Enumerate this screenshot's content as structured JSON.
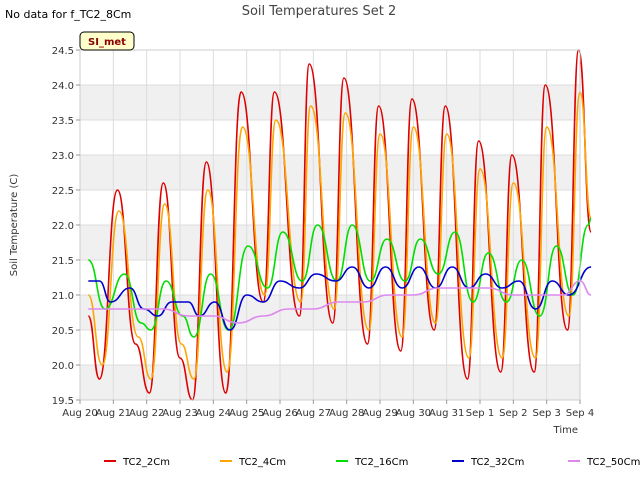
{
  "chart_data": {
    "type": "line",
    "title": "Soil Temperatures Set 2",
    "corner_note": "No data for f_TC2_8Cm",
    "station_label": "SI_met",
    "xlabel": "Time",
    "ylabel": "Soil Temperature (C)",
    "xlim": [
      "2019-08-20",
      "2019-09-04"
    ],
    "ylim": [
      19.5,
      24.5
    ],
    "x_ticks": [
      "Aug 20",
      "Aug 21",
      "Aug 22",
      "Aug 23",
      "Aug 24",
      "Aug 25",
      "Aug 26",
      "Aug 27",
      "Aug 28",
      "Aug 29",
      "Aug 30",
      "Aug 31",
      "Sep 1",
      "Sep 2",
      "Sep 3",
      "Sep 4"
    ],
    "y_ticks": [
      19.5,
      20.0,
      20.5,
      21.0,
      21.5,
      22.0,
      22.5,
      23.0,
      23.5,
      24.0,
      24.5
    ],
    "grid": true,
    "legend_position": "bottom",
    "series": [
      {
        "name": "TC2_2Cm",
        "color": "#dd0000",
        "points": [
          [
            "2019-08-20T06:00",
            20.7
          ],
          [
            "2019-08-20T14:00",
            19.8
          ],
          [
            "2019-08-21T03:00",
            22.5
          ],
          [
            "2019-08-21T16:00",
            20.3
          ],
          [
            "2019-08-22T02:00",
            19.6
          ],
          [
            "2019-08-22T12:00",
            22.6
          ],
          [
            "2019-08-23T00:00",
            20.1
          ],
          [
            "2019-08-23T09:00",
            19.5
          ],
          [
            "2019-08-23T19:00",
            22.9
          ],
          [
            "2019-08-24T09:00",
            19.6
          ],
          [
            "2019-08-24T20:00",
            23.9
          ],
          [
            "2019-08-25T12:00",
            20.9
          ],
          [
            "2019-08-25T20:00",
            23.9
          ],
          [
            "2019-08-26T14:00",
            20.7
          ],
          [
            "2019-08-26T21:00",
            24.3
          ],
          [
            "2019-08-27T14:00",
            20.6
          ],
          [
            "2019-08-27T22:00",
            24.1
          ],
          [
            "2019-08-28T15:00",
            20.3
          ],
          [
            "2019-08-28T23:00",
            23.7
          ],
          [
            "2019-08-29T15:00",
            20.2
          ],
          [
            "2019-08-29T23:00",
            23.8
          ],
          [
            "2019-08-30T15:00",
            20.5
          ],
          [
            "2019-08-30T23:00",
            23.7
          ],
          [
            "2019-08-31T15:00",
            19.8
          ],
          [
            "2019-08-31T23:00",
            23.2
          ],
          [
            "2019-09-01T15:00",
            19.9
          ],
          [
            "2019-09-01T23:00",
            23.0
          ],
          [
            "2019-09-02T15:00",
            19.9
          ],
          [
            "2019-09-02T23:00",
            24.0
          ],
          [
            "2019-09-03T15:00",
            20.5
          ],
          [
            "2019-09-03T23:00",
            24.5
          ],
          [
            "2019-09-04T08:00",
            21.9
          ]
        ]
      },
      {
        "name": "TC2_4Cm",
        "color": "#ffa500",
        "points": [
          [
            "2019-08-20T06:00",
            21.0
          ],
          [
            "2019-08-20T16:00",
            20.0
          ],
          [
            "2019-08-21T04:00",
            22.2
          ],
          [
            "2019-08-21T18:00",
            20.4
          ],
          [
            "2019-08-22T03:00",
            19.8
          ],
          [
            "2019-08-22T13:00",
            22.3
          ],
          [
            "2019-08-23T01:00",
            20.3
          ],
          [
            "2019-08-23T10:00",
            19.8
          ],
          [
            "2019-08-23T20:00",
            22.5
          ],
          [
            "2019-08-24T10:00",
            19.9
          ],
          [
            "2019-08-24T21:00",
            23.4
          ],
          [
            "2019-08-25T13:00",
            21.0
          ],
          [
            "2019-08-25T21:00",
            23.5
          ],
          [
            "2019-08-26T15:00",
            20.9
          ],
          [
            "2019-08-26T22:00",
            23.7
          ],
          [
            "2019-08-27T15:00",
            20.8
          ],
          [
            "2019-08-27T23:00",
            23.6
          ],
          [
            "2019-08-28T16:00",
            20.5
          ],
          [
            "2019-08-29T00:00",
            23.3
          ],
          [
            "2019-08-29T16:00",
            20.4
          ],
          [
            "2019-08-30T00:00",
            23.4
          ],
          [
            "2019-08-30T16:00",
            20.6
          ],
          [
            "2019-08-31T00:00",
            23.3
          ],
          [
            "2019-08-31T16:00",
            20.1
          ],
          [
            "2019-09-01T00:00",
            22.8
          ],
          [
            "2019-09-01T16:00",
            20.1
          ],
          [
            "2019-09-02T00:00",
            22.6
          ],
          [
            "2019-09-02T16:00",
            20.1
          ],
          [
            "2019-09-03T00:00",
            23.4
          ],
          [
            "2019-09-03T16:00",
            20.7
          ],
          [
            "2019-09-04T00:00",
            23.9
          ],
          [
            "2019-09-04T08:00",
            22.1
          ]
        ]
      },
      {
        "name": "TC2_16Cm",
        "color": "#00dd00",
        "points": [
          [
            "2019-08-20T06:00",
            21.5
          ],
          [
            "2019-08-20T18:00",
            20.8
          ],
          [
            "2019-08-21T08:00",
            21.3
          ],
          [
            "2019-08-21T20:00",
            20.6
          ],
          [
            "2019-08-22T03:00",
            20.5
          ],
          [
            "2019-08-22T14:00",
            21.2
          ],
          [
            "2019-08-23T02:00",
            20.7
          ],
          [
            "2019-08-23T10:00",
            20.4
          ],
          [
            "2019-08-23T22:00",
            21.3
          ],
          [
            "2019-08-24T11:00",
            20.5
          ],
          [
            "2019-08-25T01:00",
            21.7
          ],
          [
            "2019-08-25T15:00",
            21.1
          ],
          [
            "2019-08-26T02:00",
            21.9
          ],
          [
            "2019-08-26T16:00",
            21.2
          ],
          [
            "2019-08-27T03:00",
            22.0
          ],
          [
            "2019-08-27T17:00",
            21.2
          ],
          [
            "2019-08-28T04:00",
            22.0
          ],
          [
            "2019-08-28T17:00",
            21.2
          ],
          [
            "2019-08-29T05:00",
            21.8
          ],
          [
            "2019-08-29T18:00",
            21.2
          ],
          [
            "2019-08-30T05:00",
            21.8
          ],
          [
            "2019-08-30T18:00",
            21.3
          ],
          [
            "2019-08-31T06:00",
            21.9
          ],
          [
            "2019-08-31T19:00",
            20.9
          ],
          [
            "2019-09-01T06:00",
            21.6
          ],
          [
            "2019-09-01T19:00",
            20.9
          ],
          [
            "2019-09-02T06:00",
            21.5
          ],
          [
            "2019-09-02T19:00",
            20.7
          ],
          [
            "2019-09-03T07:00",
            21.7
          ],
          [
            "2019-09-03T19:00",
            21.0
          ],
          [
            "2019-09-04T06:00",
            22.0
          ],
          [
            "2019-09-04T08:00",
            22.1
          ]
        ]
      },
      {
        "name": "TC2_32Cm",
        "color": "#0000cc",
        "points": [
          [
            "2019-08-20T06:00",
            21.2
          ],
          [
            "2019-08-20T14:00",
            21.2
          ],
          [
            "2019-08-20T22:00",
            20.9
          ],
          [
            "2019-08-21T12:00",
            21.1
          ],
          [
            "2019-08-21T22:00",
            20.8
          ],
          [
            "2019-08-22T08:00",
            20.7
          ],
          [
            "2019-08-22T18:00",
            20.9
          ],
          [
            "2019-08-23T06:00",
            20.9
          ],
          [
            "2019-08-23T14:00",
            20.7
          ],
          [
            "2019-08-24T01:00",
            20.9
          ],
          [
            "2019-08-24T12:00",
            20.5
          ],
          [
            "2019-08-25T00:00",
            21.0
          ],
          [
            "2019-08-25T12:00",
            20.9
          ],
          [
            "2019-08-26T00:00",
            21.2
          ],
          [
            "2019-08-26T14:00",
            21.1
          ],
          [
            "2019-08-27T02:00",
            21.3
          ],
          [
            "2019-08-27T16:00",
            21.2
          ],
          [
            "2019-08-28T04:00",
            21.4
          ],
          [
            "2019-08-28T16:00",
            21.1
          ],
          [
            "2019-08-29T04:00",
            21.4
          ],
          [
            "2019-08-29T16:00",
            21.1
          ],
          [
            "2019-08-30T04:00",
            21.4
          ],
          [
            "2019-08-30T16:00",
            21.1
          ],
          [
            "2019-08-31T04:00",
            21.4
          ],
          [
            "2019-08-31T16:00",
            21.1
          ],
          [
            "2019-09-01T04:00",
            21.3
          ],
          [
            "2019-09-01T16:00",
            21.1
          ],
          [
            "2019-09-02T04:00",
            21.2
          ],
          [
            "2019-09-02T16:00",
            20.8
          ],
          [
            "2019-09-03T04:00",
            21.2
          ],
          [
            "2019-09-03T16:00",
            21.0
          ],
          [
            "2019-09-04T08:00",
            21.4
          ]
        ]
      },
      {
        "name": "TC2_50Cm",
        "color": "#dd88ee",
        "points": [
          [
            "2019-08-20T06:00",
            20.8
          ],
          [
            "2019-08-21T00:00",
            20.8
          ],
          [
            "2019-08-21T18:00",
            20.8
          ],
          [
            "2019-08-22T12:00",
            20.8
          ],
          [
            "2019-08-23T06:00",
            20.7
          ],
          [
            "2019-08-24T00:00",
            20.7
          ],
          [
            "2019-08-24T18:00",
            20.6
          ],
          [
            "2019-08-25T12:00",
            20.7
          ],
          [
            "2019-08-26T06:00",
            20.8
          ],
          [
            "2019-08-27T00:00",
            20.8
          ],
          [
            "2019-08-27T18:00",
            20.9
          ],
          [
            "2019-08-28T12:00",
            20.9
          ],
          [
            "2019-08-29T06:00",
            21.0
          ],
          [
            "2019-08-30T00:00",
            21.0
          ],
          [
            "2019-08-30T18:00",
            21.1
          ],
          [
            "2019-08-31T12:00",
            21.1
          ],
          [
            "2019-09-01T06:00",
            21.1
          ],
          [
            "2019-09-02T00:00",
            21.0
          ],
          [
            "2019-09-02T18:00",
            21.0
          ],
          [
            "2019-09-03T12:00",
            21.0
          ],
          [
            "2019-09-04T00:00",
            21.2
          ],
          [
            "2019-09-04T08:00",
            21.0
          ]
        ]
      }
    ]
  }
}
